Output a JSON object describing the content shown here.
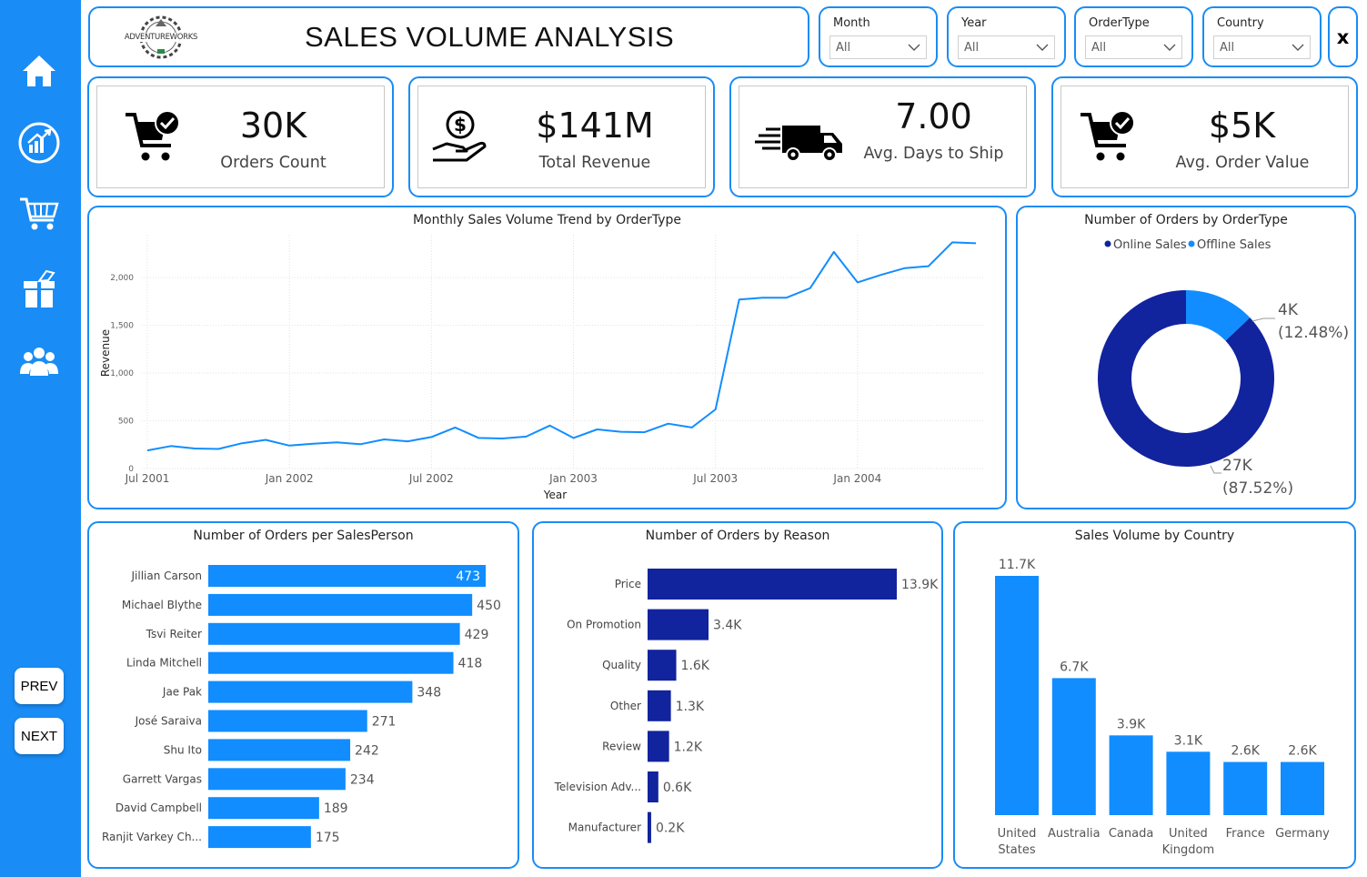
{
  "header": {
    "logo_text": "ADVENTUREWORKS",
    "title": "SALES VOLUME ANALYSIS",
    "close_label": "x"
  },
  "slicers": [
    {
      "label": "Month",
      "value": "All"
    },
    {
      "label": "Year",
      "value": "All"
    },
    {
      "label": "OrderType",
      "value": "All"
    },
    {
      "label": "Country",
      "value": "All"
    }
  ],
  "nav": {
    "icons": [
      "home-icon",
      "sales-chart-icon",
      "cart-icon",
      "gift-icon",
      "people-icon"
    ],
    "prev_label": "PREV",
    "next_label": "NEXT"
  },
  "kpis": [
    {
      "value": "30K",
      "label": "Orders Count",
      "icon": "cart-check-icon"
    },
    {
      "value": "$141M",
      "label": "Total Revenue",
      "icon": "money-hand-icon"
    },
    {
      "value": "7.00",
      "label": "Avg. Days to Ship",
      "icon": "delivery-truck-icon"
    },
    {
      "value": "$5K",
      "label": "Avg. Order Value",
      "icon": "cart-check-icon"
    }
  ],
  "colors": {
    "accent": "#1a8cf5",
    "dark_blue": "#12239e",
    "bar_blue": "#118dff",
    "line_blue": "#118dff"
  },
  "chart_data": [
    {
      "type": "line",
      "title": "Monthly Sales Volume Trend by OrderType",
      "xlabel": "Year",
      "ylabel": "Revenue",
      "x_tick_labels": [
        "Jul 2001",
        "Jan 2002",
        "Jul 2002",
        "Jan 2003",
        "Jul 2003",
        "Jan 2004"
      ],
      "y_tick_labels": [
        "0",
        "500",
        "1,000",
        "1,500",
        "2,000"
      ],
      "ylim": [
        0,
        2450
      ],
      "grid": true,
      "x": [
        "Jul 2001",
        "Aug 2001",
        "Sep 2001",
        "Oct 2001",
        "Nov 2001",
        "Dec 2001",
        "Jan 2002",
        "Feb 2002",
        "Mar 2002",
        "Apr 2002",
        "May 2002",
        "Jun 2002",
        "Jul 2002",
        "Aug 2002",
        "Sep 2002",
        "Oct 2002",
        "Nov 2002",
        "Dec 2002",
        "Jan 2003",
        "Feb 2003",
        "Mar 2003",
        "Apr 2003",
        "May 2003",
        "Jun 2003",
        "Jul 2003",
        "Aug 2003",
        "Sep 2003",
        "Oct 2003",
        "Nov 2003",
        "Dec 2003",
        "Jan 2004",
        "Feb 2004",
        "Mar 2004",
        "Apr 2004",
        "May 2004",
        "Jun 2004"
      ],
      "values": [
        190,
        235,
        210,
        205,
        265,
        300,
        240,
        260,
        275,
        255,
        305,
        285,
        330,
        430,
        320,
        315,
        335,
        450,
        320,
        410,
        385,
        380,
        470,
        430,
        620,
        1770,
        1790,
        1790,
        1890,
        2270,
        1950,
        2030,
        2100,
        2120,
        2370,
        2360
      ]
    },
    {
      "type": "pie",
      "title": "Number of Orders by OrderType",
      "legend": [
        "Online Sales",
        "Offline Sales"
      ],
      "legend_placement": "top",
      "slices": [
        {
          "name": "Online Sales",
          "value": 27000,
          "label": "27K",
          "percent": "(87.52%)",
          "color": "#12239e"
        },
        {
          "name": "Offline Sales",
          "value": 4000,
          "label": "4K",
          "percent": "(12.48%)",
          "color": "#118dff"
        }
      ]
    },
    {
      "type": "bar",
      "title": "Number of Orders per SalesPerson",
      "orientation": "horizontal",
      "categories": [
        "Jillian Carson",
        "Michael Blythe",
        "Tsvi Reiter",
        "Linda Mitchell",
        "Jae Pak",
        "José Saraiva",
        "Shu Ito",
        "Garrett Vargas",
        "David Campbell",
        "Ranjit Varkey Ch..."
      ],
      "values": [
        473,
        450,
        429,
        418,
        348,
        271,
        242,
        234,
        189,
        175
      ],
      "labels": [
        "473",
        "450",
        "429",
        "418",
        "348",
        "271",
        "242",
        "234",
        "189",
        "175"
      ],
      "color": "#118dff"
    },
    {
      "type": "bar",
      "title": "Number of Orders by Reason",
      "orientation": "horizontal",
      "categories": [
        "Price",
        "On Promotion",
        "Quality",
        "Other",
        "Review",
        "Television Adv...",
        "Manufacturer"
      ],
      "values": [
        13900,
        3400,
        1600,
        1300,
        1200,
        600,
        200
      ],
      "labels": [
        "13.9K",
        "3.4K",
        "1.6K",
        "1.3K",
        "1.2K",
        "0.6K",
        "0.2K"
      ],
      "color": "#12239e"
    },
    {
      "type": "bar",
      "title": "Sales Volume by Country",
      "orientation": "vertical",
      "categories": [
        [
          "United",
          "States"
        ],
        [
          "Australia"
        ],
        [
          "Canada"
        ],
        [
          "United",
          "Kingdom"
        ],
        [
          "France"
        ],
        [
          "Germany"
        ]
      ],
      "values": [
        11700,
        6700,
        3900,
        3100,
        2600,
        2600
      ],
      "labels": [
        "11.7K",
        "6.7K",
        "3.9K",
        "3.1K",
        "2.6K",
        "2.6K"
      ],
      "color": "#118dff"
    }
  ]
}
